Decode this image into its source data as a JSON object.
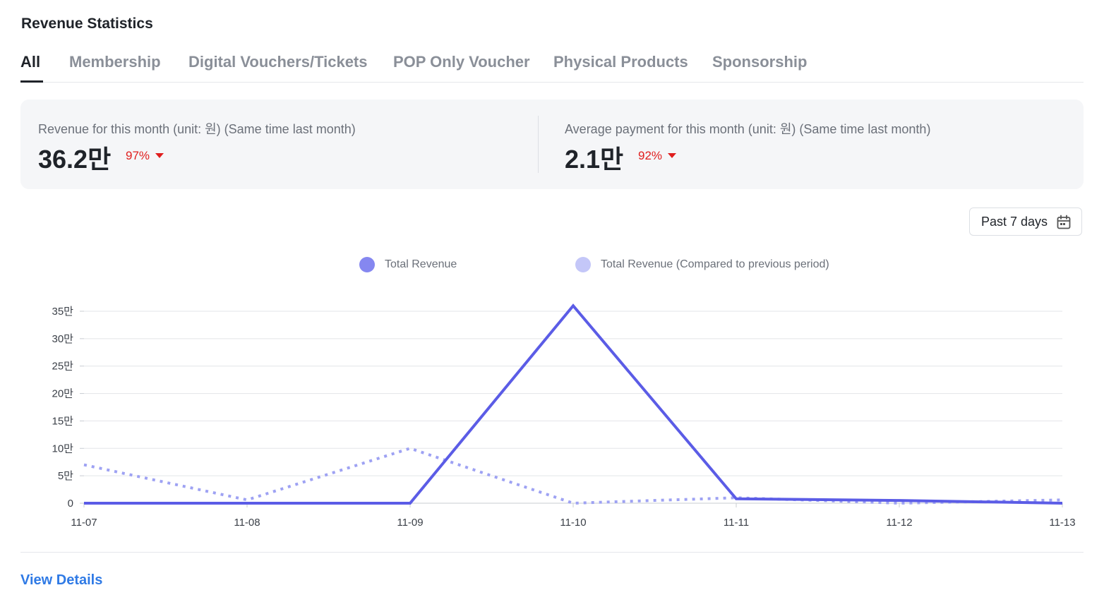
{
  "header": {
    "title": "Revenue Statistics"
  },
  "tabs": [
    {
      "label": "All",
      "active": true
    },
    {
      "label": "Membership",
      "active": false
    },
    {
      "label": "Digital Vouchers/Tickets",
      "active": false
    },
    {
      "label": "POP Only Voucher",
      "active": false
    },
    {
      "label": "Physical Products",
      "active": false
    },
    {
      "label": "Sponsorship",
      "active": false
    }
  ],
  "stats": {
    "revenue": {
      "label": "Revenue for this month (unit: 원) (Same time last month)",
      "value": "36.2만",
      "change": "97%",
      "direction": "down"
    },
    "average": {
      "label": "Average payment for this month (unit: 원) (Same time last month)",
      "value": "2.1만",
      "change": "92%",
      "direction": "down"
    }
  },
  "date_range": {
    "label": "Past 7 days",
    "icon": "calendar-icon"
  },
  "colors": {
    "accent": "#5b5ce6",
    "accent_light": "#9ea2f3",
    "down": "#e01e1e",
    "link": "#2f7ae5"
  },
  "chart_data": {
    "type": "line",
    "x": [
      "11-07",
      "11-08",
      "11-09",
      "11-10",
      "11-11",
      "11-12",
      "11-13"
    ],
    "yticks": [
      "0",
      "5만",
      "10만",
      "15만",
      "20만",
      "25만",
      "30만",
      "35만"
    ],
    "ylim": [
      0,
      350000
    ],
    "grid": true,
    "legend_position": "top-center",
    "series": [
      {
        "name": "Total Revenue",
        "values": [
          0,
          0,
          0,
          360000,
          8000,
          5000,
          0
        ],
        "color": "#5b5ce6",
        "style": "solid"
      },
      {
        "name": "Total Revenue (Compared to previous period)",
        "values": [
          70000,
          6000,
          100000,
          0,
          10000,
          0,
          6000
        ],
        "color": "#9ea2f3",
        "style": "dotted"
      }
    ]
  },
  "footer": {
    "view_details": "View Details"
  }
}
